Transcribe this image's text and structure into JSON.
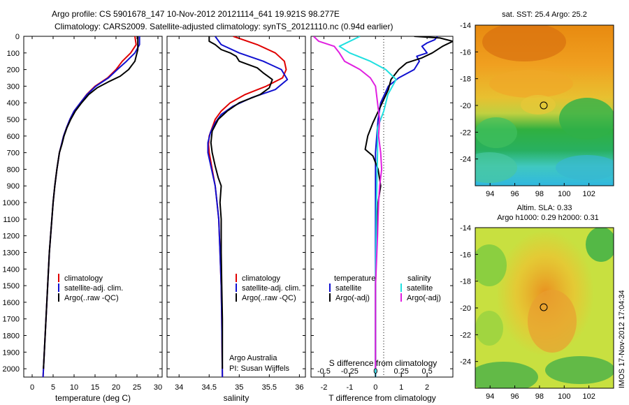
{
  "header": {
    "title_line1": "Argo profile: CS 5901678_147 10-Nov-2012 20121114_641 19.921S 98.277E",
    "title_line2": "Climatology: CARS2009. Satellite-adjusted climatology: synTS_20121110.nc (0.94d earlier)"
  },
  "colors": {
    "climatology": "#e00000",
    "satellite": "#1010d0",
    "argo": "#000000",
    "cyan": "#20e0e0",
    "magenta": "#e020e0"
  },
  "depth_ticks": [
    "0",
    "100",
    "200",
    "300",
    "400",
    "500",
    "600",
    "700",
    "800",
    "900",
    "1000",
    "1100",
    "1200",
    "1300",
    "1400",
    "1500",
    "1600",
    "1700",
    "1800",
    "1900",
    "2000"
  ],
  "temp_panel": {
    "xlabel": "temperature (deg C)",
    "xticks": [
      "0",
      "5",
      "10",
      "15",
      "20",
      "25",
      "30"
    ],
    "legend": [
      "climatology",
      "satellite-adj. clim.",
      "Argo(..raw -QC)"
    ]
  },
  "sal_panel": {
    "xlabel": "salinity",
    "xticks": [
      "34",
      "34.5",
      "35",
      "35.5",
      "36"
    ],
    "legend": [
      "climatology",
      "satellite-adj. clim.",
      "Argo(..raw -QC)"
    ],
    "note1": "Argo Australia",
    "note2": "PI: Susan Wijffels"
  },
  "diff_panel": {
    "xlabel": "T difference from climatology",
    "top_xlabel": "S difference from climatology",
    "xticks": [
      "-2",
      "-1",
      "0",
      "1",
      "2"
    ],
    "s_ticks": [
      "-0.5",
      "-0.25",
      "0",
      "0.25",
      "0.5"
    ],
    "legend_t_title": "temperature",
    "legend_s_title": "salinity",
    "legend_t": [
      "satellite",
      "Argo(-adj)"
    ],
    "legend_s": [
      "satellite",
      "Argo(-adj)"
    ]
  },
  "map_sst": {
    "title": "sat. SST: 25.4 Argo: 25.2",
    "yticks": [
      "-14",
      "-16",
      "-18",
      "-20",
      "-22",
      "-24"
    ],
    "xticks": [
      "94",
      "96",
      "98",
      "100",
      "102"
    ]
  },
  "map_sla": {
    "title1": "Altim. SLA: 0.33",
    "title2": "Argo h1000: 0.29 h2000: 0.31",
    "yticks": [
      "-14",
      "-16",
      "-18",
      "-20",
      "-22",
      "-24"
    ],
    "xticks": [
      "94",
      "96",
      "98",
      "100",
      "102"
    ]
  },
  "footer": {
    "stamp": "IMOS 17-Nov-2012 17:04:34"
  },
  "chart_data": [
    {
      "type": "line",
      "name": "temperature",
      "xlabel": "temperature (deg C)",
      "ylabel": "depth",
      "xlim": [
        -2,
        31
      ],
      "ylim": [
        2050,
        0
      ],
      "series": [
        {
          "name": "climatology",
          "color": "#e00000",
          "points": [
            [
              24.5,
              0
            ],
            [
              24.8,
              50
            ],
            [
              23.5,
              100
            ],
            [
              21.5,
              150
            ],
            [
              20,
              200
            ],
            [
              18,
              250
            ],
            [
              15,
              300
            ],
            [
              13,
              350
            ],
            [
              11.5,
              400
            ],
            [
              10,
              450
            ],
            [
              9,
              500
            ],
            [
              8.2,
              550
            ],
            [
              7.5,
              600
            ],
            [
              7,
              650
            ],
            [
              6.5,
              700
            ],
            [
              5.9,
              800
            ],
            [
              5.4,
              900
            ],
            [
              5,
              1000
            ],
            [
              4.7,
              1100
            ],
            [
              4.4,
              1200
            ],
            [
              4.1,
              1300
            ],
            [
              3.9,
              1400
            ],
            [
              3.7,
              1500
            ],
            [
              3.5,
              1600
            ],
            [
              3.3,
              1700
            ],
            [
              3.1,
              1800
            ],
            [
              2.9,
              1900
            ],
            [
              2.7,
              2000
            ],
            [
              2.6,
              2050
            ]
          ]
        },
        {
          "name": "satellite-adj. clim.",
          "color": "#1010d0",
          "points": [
            [
              25.6,
              0
            ],
            [
              25.6,
              50
            ],
            [
              24.5,
              100
            ],
            [
              22.5,
              150
            ],
            [
              20.3,
              200
            ],
            [
              18.2,
              250
            ],
            [
              15.2,
              300
            ],
            [
              13.1,
              350
            ],
            [
              11.5,
              400
            ],
            [
              10,
              450
            ],
            [
              9,
              500
            ],
            [
              8.2,
              550
            ],
            [
              7.5,
              600
            ],
            [
              7,
              650
            ],
            [
              6.5,
              700
            ],
            [
              5.9,
              800
            ],
            [
              5.4,
              900
            ],
            [
              5,
              1000
            ],
            [
              4.7,
              1100
            ],
            [
              4.4,
              1200
            ],
            [
              4.1,
              1300
            ],
            [
              3.9,
              1400
            ],
            [
              3.7,
              1500
            ],
            [
              3.5,
              1600
            ],
            [
              3.3,
              1700
            ],
            [
              3.1,
              1800
            ],
            [
              2.9,
              1900
            ],
            [
              2.7,
              2000
            ],
            [
              2.6,
              2050
            ]
          ]
        },
        {
          "name": "Argo(..raw -QC)",
          "color": "#000000",
          "points": [
            [
              25.2,
              0
            ],
            [
              25.2,
              80
            ],
            [
              24.5,
              150
            ],
            [
              23,
              200
            ],
            [
              21,
              240
            ],
            [
              18.5,
              270
            ],
            [
              15.5,
              310
            ],
            [
              13.5,
              350
            ],
            [
              11.8,
              400
            ],
            [
              10.3,
              450
            ],
            [
              9.2,
              500
            ],
            [
              8.3,
              550
            ],
            [
              7.6,
              600
            ],
            [
              7.1,
              650
            ],
            [
              6.5,
              700
            ],
            [
              5.9,
              800
            ],
            [
              5.4,
              900
            ],
            [
              5,
              1000
            ],
            [
              4.7,
              1100
            ],
            [
              4.4,
              1200
            ],
            [
              4.1,
              1300
            ],
            [
              3.9,
              1400
            ],
            [
              3.7,
              1500
            ],
            [
              3.5,
              1600
            ],
            [
              3.3,
              1700
            ],
            [
              3.1,
              1800
            ],
            [
              2.9,
              1900
            ],
            [
              2.7,
              2000
            ]
          ]
        }
      ]
    },
    {
      "type": "line",
      "name": "salinity",
      "xlabel": "salinity",
      "ylabel": "depth",
      "xlim": [
        33.8,
        36.1
      ],
      "ylim": [
        2050,
        0
      ],
      "series": [
        {
          "name": "climatology",
          "color": "#e00000",
          "points": [
            [
              34.9,
              0
            ],
            [
              35.3,
              50
            ],
            [
              35.6,
              100
            ],
            [
              35.75,
              150
            ],
            [
              35.78,
              200
            ],
            [
              35.72,
              250
            ],
            [
              35.45,
              300
            ],
            [
              35.1,
              350
            ],
            [
              34.85,
              400
            ],
            [
              34.7,
              450
            ],
            [
              34.6,
              500
            ],
            [
              34.55,
              550
            ],
            [
              34.5,
              600
            ],
            [
              34.49,
              650
            ],
            [
              34.5,
              700
            ],
            [
              34.55,
              800
            ],
            [
              34.6,
              900
            ],
            [
              34.63,
              1000
            ],
            [
              34.66,
              1100
            ],
            [
              34.68,
              1300
            ],
            [
              34.7,
              1500
            ],
            [
              34.71,
              1700
            ],
            [
              34.72,
              2050
            ]
          ]
        },
        {
          "name": "satellite-adj. clim.",
          "color": "#1010d0",
          "points": [
            [
              34.6,
              0
            ],
            [
              34.7,
              50
            ],
            [
              35.0,
              100
            ],
            [
              35.4,
              150
            ],
            [
              35.7,
              200
            ],
            [
              35.8,
              260
            ],
            [
              35.6,
              320
            ],
            [
              35.2,
              370
            ],
            [
              34.9,
              420
            ],
            [
              34.7,
              470
            ],
            [
              34.6,
              520
            ],
            [
              34.52,
              580
            ],
            [
              34.48,
              640
            ],
            [
              34.48,
              700
            ],
            [
              34.54,
              800
            ],
            [
              34.6,
              900
            ],
            [
              34.63,
              1000
            ],
            [
              34.66,
              1100
            ],
            [
              34.68,
              1300
            ],
            [
              34.7,
              1500
            ],
            [
              34.71,
              1700
            ],
            [
              34.72,
              2050
            ]
          ]
        },
        {
          "name": "Argo(..raw -QC)",
          "color": "#000000",
          "points": [
            [
              34.5,
              0
            ],
            [
              34.5,
              30
            ],
            [
              34.6,
              50
            ],
            [
              34.7,
              80
            ],
            [
              34.85,
              100
            ],
            [
              34.95,
              120
            ],
            [
              35.0,
              150
            ],
            [
              35.3,
              190
            ],
            [
              35.4,
              220
            ],
            [
              35.55,
              260
            ],
            [
              35.5,
              310
            ],
            [
              35.35,
              350
            ],
            [
              35.0,
              400
            ],
            [
              34.8,
              450
            ],
            [
              34.65,
              500
            ],
            [
              34.55,
              570
            ],
            [
              34.53,
              640
            ],
            [
              34.55,
              700
            ],
            [
              34.6,
              780
            ],
            [
              34.65,
              850
            ],
            [
              34.7,
              900
            ],
            [
              34.68,
              1000
            ],
            [
              34.7,
              1100
            ],
            [
              34.7,
              1300
            ],
            [
              34.71,
              1500
            ],
            [
              34.72,
              1700
            ],
            [
              34.72,
              2000
            ]
          ]
        }
      ]
    },
    {
      "type": "line",
      "name": "differences from climatology",
      "xlabel": "T difference from climatology",
      "x2label": "S difference from climatology",
      "xlim": [
        -2.5,
        3.0
      ],
      "x2lim": [
        -0.625,
        0.75
      ],
      "ylim": [
        2050,
        0
      ],
      "series": [
        {
          "name": "temperature satellite",
          "color": "#1010d0",
          "points": [
            [
              2.4,
              0
            ],
            [
              2.3,
              20
            ],
            [
              2.0,
              40
            ],
            [
              1.8,
              60
            ],
            [
              1.9,
              80
            ],
            [
              2.0,
              100
            ],
            [
              1.6,
              120
            ],
            [
              1.7,
              150
            ],
            [
              1.5,
              200
            ],
            [
              0.9,
              250
            ],
            [
              0.5,
              300
            ],
            [
              0.2,
              400
            ],
            [
              0.1,
              500
            ],
            [
              0.05,
              600
            ],
            [
              0,
              700
            ],
            [
              0,
              2050
            ]
          ]
        },
        {
          "name": "temperature Argo(-adj)",
          "color": "#000000",
          "points": [
            [
              1.5,
              0
            ],
            [
              2.5,
              10
            ],
            [
              3.0,
              30
            ],
            [
              2.6,
              60
            ],
            [
              2.2,
              100
            ],
            [
              1.8,
              130
            ],
            [
              1.2,
              160
            ],
            [
              0.9,
              200
            ],
            [
              0.6,
              260
            ],
            [
              0.5,
              320
            ],
            [
              0.2,
              420
            ],
            [
              -0.1,
              520
            ],
            [
              -0.3,
              600
            ],
            [
              -0.4,
              680
            ],
            [
              -0.1,
              720
            ],
            [
              0.1,
              800
            ],
            [
              0.2,
              900
            ],
            [
              0.1,
              1000
            ],
            [
              0.05,
              1200
            ],
            [
              0,
              1500
            ],
            [
              0,
              2000
            ]
          ]
        },
        {
          "name": "salinity satellite",
          "color": "#20e0e0",
          "points": [
            [
              -0.15,
              0
            ],
            [
              -0.35,
              60
            ],
            [
              -0.25,
              100
            ],
            [
              -0.05,
              150
            ],
            [
              0.1,
              200
            ],
            [
              0.2,
              260
            ],
            [
              0.12,
              350
            ],
            [
              0.08,
              450
            ],
            [
              0.02,
              550
            ],
            [
              0.02,
              700
            ],
            [
              0.01,
              1000
            ],
            [
              0,
              1500
            ],
            [
              0,
              2050
            ]
          ]
        },
        {
          "name": "salinity Argo(-adj)",
          "color": "#e020e0",
          "points": [
            [
              -0.6,
              0
            ],
            [
              -0.55,
              30
            ],
            [
              -0.4,
              60
            ],
            [
              -0.35,
              100
            ],
            [
              -0.3,
              150
            ],
            [
              -0.15,
              200
            ],
            [
              -0.05,
              250
            ],
            [
              0.0,
              300
            ],
            [
              0.02,
              400
            ],
            [
              0.04,
              500
            ],
            [
              0.03,
              600
            ],
            [
              0.05,
              700
            ],
            [
              0.06,
              800
            ],
            [
              0.04,
              900
            ],
            [
              0.03,
              1000
            ],
            [
              0.02,
              1200
            ],
            [
              0,
              1500
            ],
            [
              0,
              2000
            ]
          ]
        }
      ]
    }
  ]
}
